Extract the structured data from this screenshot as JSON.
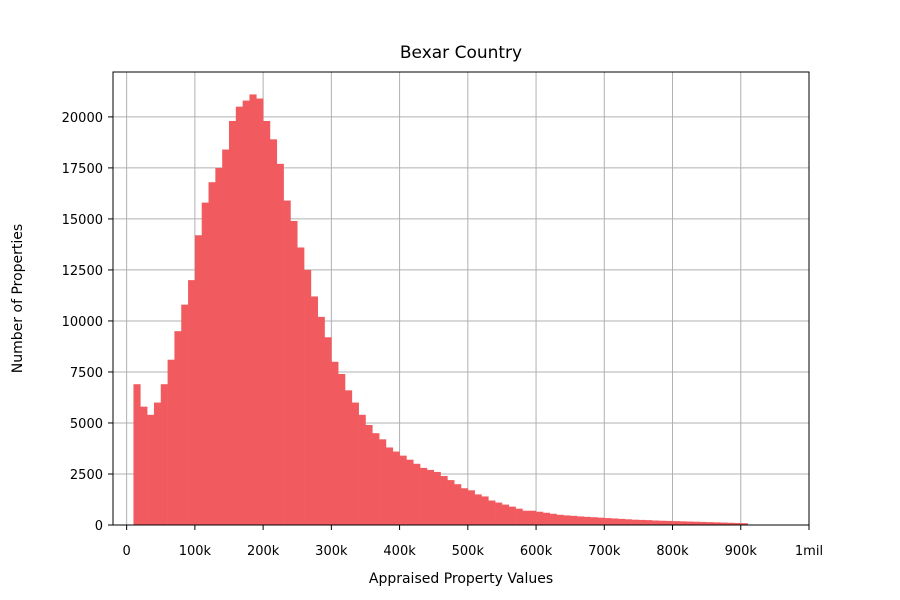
{
  "chart_data": {
    "type": "bar",
    "title": "Bexar Country",
    "xlabel": "Appraised Property Values",
    "ylabel": "Number of Properties",
    "xlim": [
      -20000,
      1000000
    ],
    "ylim": [
      0,
      22200
    ],
    "grid": true,
    "bar_color": "#f15b60",
    "bin_width": 10000,
    "bins_start": 10000,
    "x_ticks": [
      0,
      100000,
      200000,
      300000,
      400000,
      500000,
      600000,
      700000,
      800000,
      900000,
      1000000
    ],
    "x_tick_labels": [
      "0",
      "100k",
      "200k",
      "300k",
      "400k",
      "500k",
      "600k",
      "700k",
      "800k",
      "900k",
      "1mil"
    ],
    "y_ticks": [
      0,
      2500,
      5000,
      7500,
      10000,
      12500,
      15000,
      17500,
      20000
    ],
    "y_tick_labels": [
      "0",
      "2500",
      "5000",
      "7500",
      "10000",
      "12500",
      "15000",
      "17500",
      "20000"
    ],
    "values": [
      6900,
      5800,
      5400,
      6000,
      6900,
      8100,
      9500,
      10800,
      12000,
      14200,
      15800,
      16800,
      17500,
      18400,
      19800,
      20500,
      20800,
      21100,
      20900,
      19800,
      18900,
      17700,
      15900,
      14900,
      13600,
      12500,
      11200,
      10200,
      9200,
      8000,
      7400,
      6600,
      6000,
      5400,
      4900,
      4500,
      4200,
      3800,
      3600,
      3400,
      3200,
      3000,
      2800,
      2700,
      2600,
      2400,
      2200,
      2000,
      1800,
      1700,
      1500,
      1400,
      1200,
      1100,
      1000,
      900,
      800,
      700,
      700,
      650,
      600,
      550,
      500,
      470,
      450,
      420,
      400,
      380,
      360,
      340,
      320,
      300,
      280,
      260,
      250,
      240,
      220,
      210,
      200,
      190,
      180,
      170,
      160,
      150,
      140,
      130,
      120,
      110,
      100,
      90
    ]
  }
}
